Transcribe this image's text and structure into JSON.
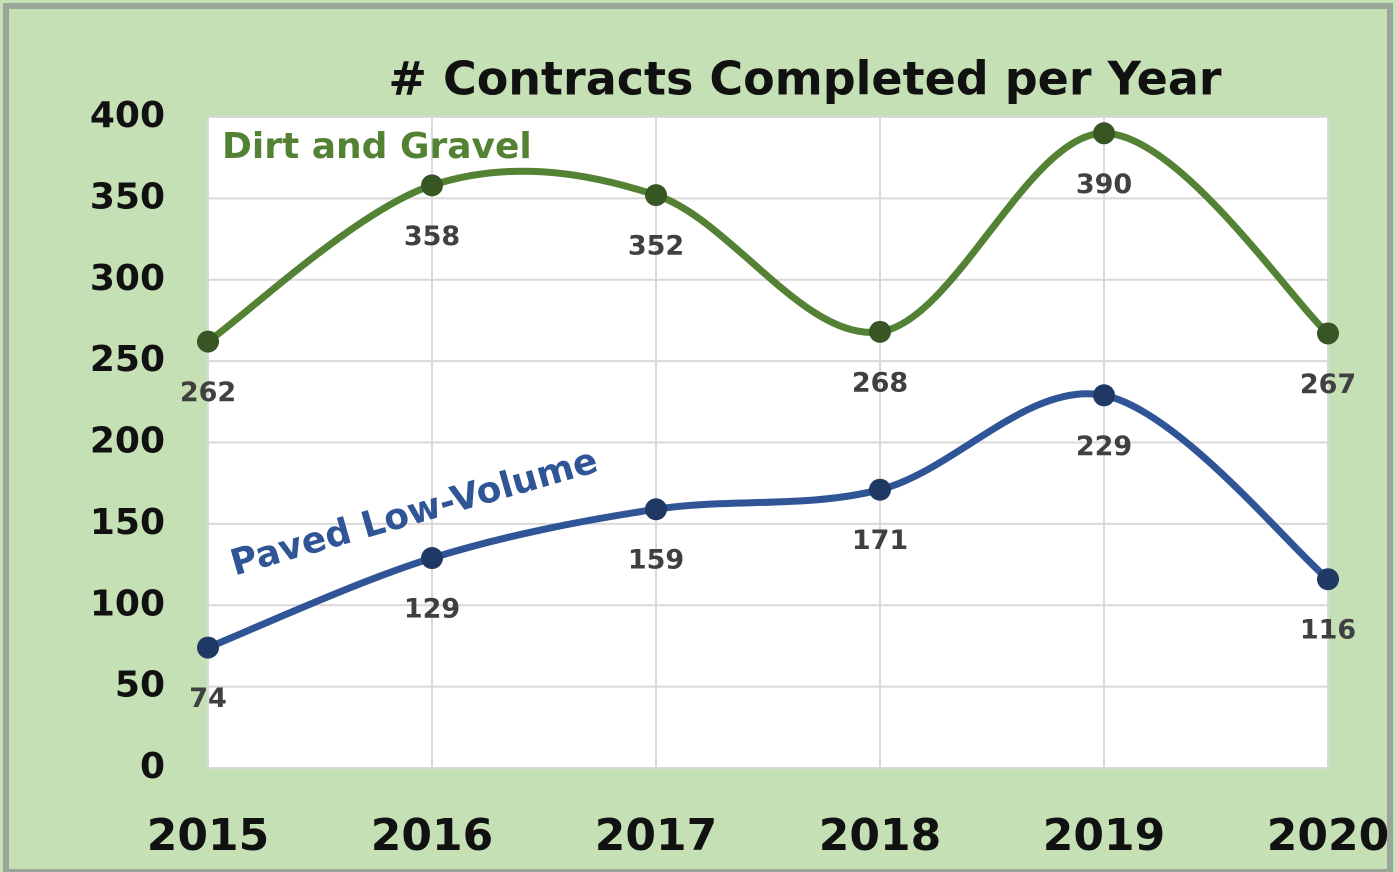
{
  "chart_data": {
    "type": "line",
    "title": "# Contracts Completed per Year",
    "categories": [
      "2015",
      "2016",
      "2017",
      "2018",
      "2019",
      "2020"
    ],
    "series": [
      {
        "name": "Dirt and Gravel",
        "color": "#548235",
        "values": [
          262,
          358,
          352,
          268,
          390,
          267
        ]
      },
      {
        "name": "Paved Low-Volume",
        "color": "#2f5597",
        "values": [
          74,
          129,
          159,
          171,
          229,
          116
        ]
      }
    ],
    "ylim": [
      0,
      400
    ],
    "yticks": [
      0,
      50,
      100,
      150,
      200,
      250,
      300,
      350,
      400
    ],
    "grid": true,
    "smooth": true
  }
}
